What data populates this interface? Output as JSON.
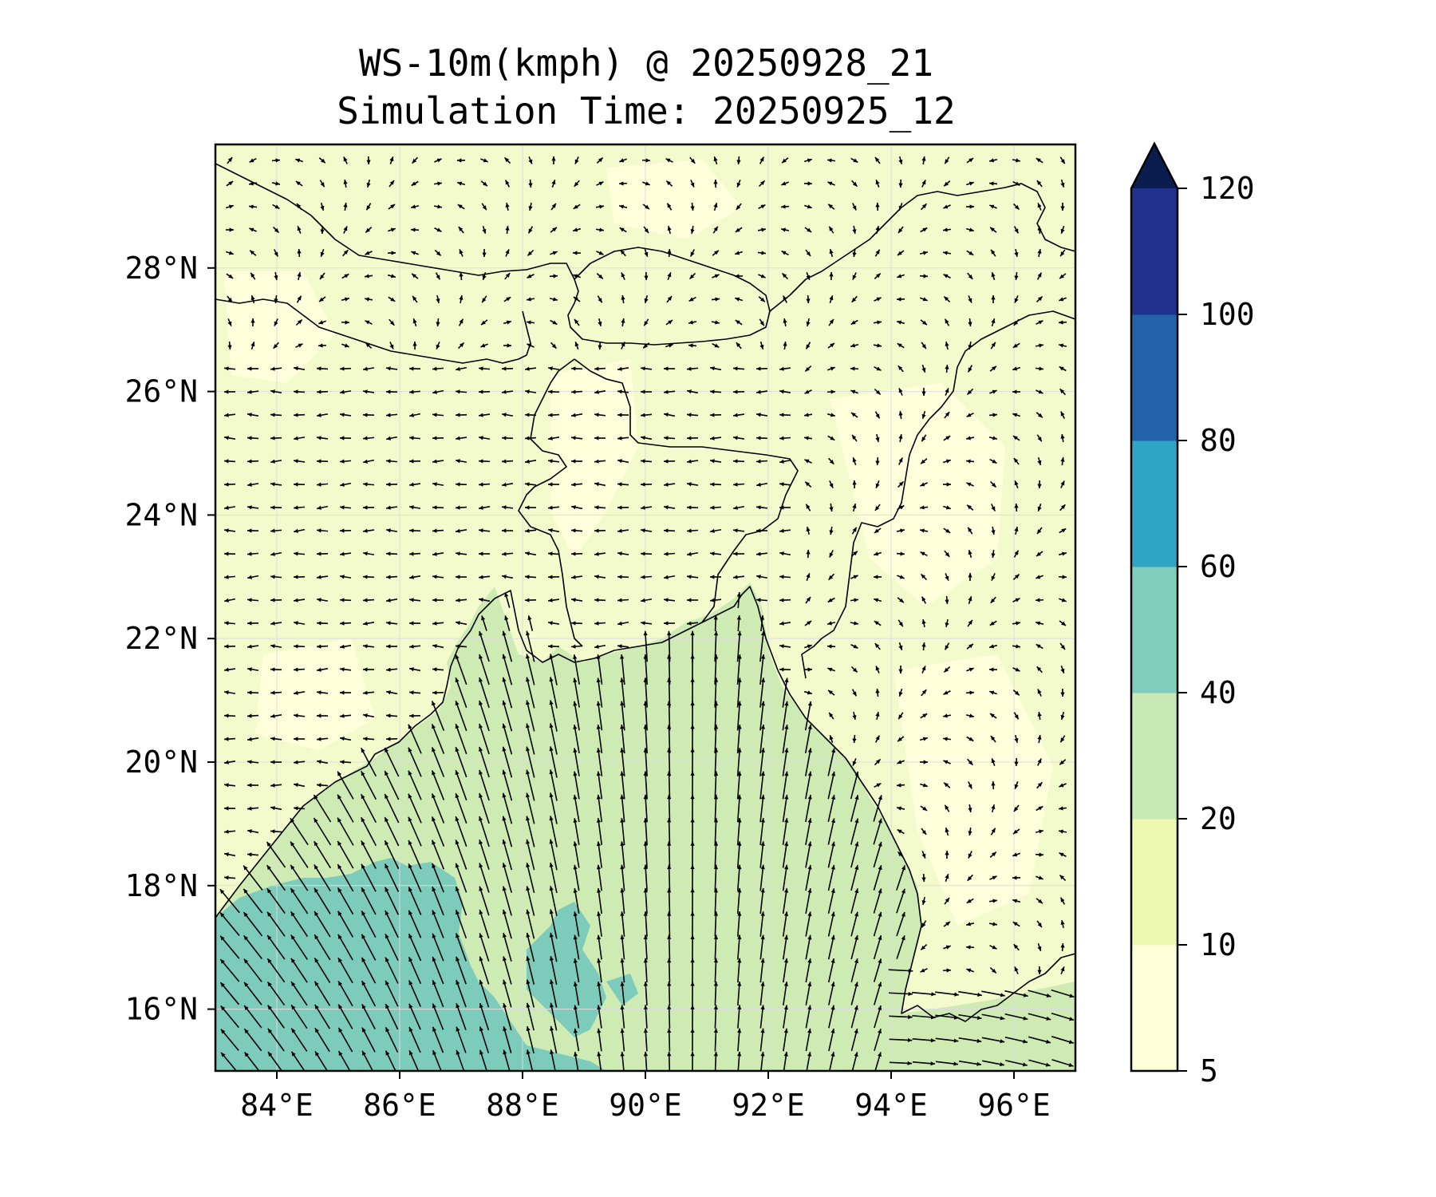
{
  "title": {
    "line1": "WS-10m(kmph) @ 20250928_21",
    "line2": "Simulation Time: 20250925_12"
  },
  "map": {
    "region": "Bay of Bengal",
    "lon_range": [
      83,
      97
    ],
    "lat_range": [
      15,
      30
    ],
    "lon_ticks": [
      {
        "value": 84,
        "label": "84°E"
      },
      {
        "value": 86,
        "label": "86°E"
      },
      {
        "value": 88,
        "label": "88°E"
      },
      {
        "value": 90,
        "label": "90°E"
      },
      {
        "value": 92,
        "label": "92°E"
      },
      {
        "value": 94,
        "label": "94°E"
      },
      {
        "value": 96,
        "label": "96°E"
      }
    ],
    "lat_ticks": [
      {
        "value": 16,
        "label": "16°N"
      },
      {
        "value": 18,
        "label": "18°N"
      },
      {
        "value": 20,
        "label": "20°N"
      },
      {
        "value": 22,
        "label": "22°N"
      },
      {
        "value": 24,
        "label": "24°N"
      },
      {
        "value": 26,
        "label": "26°N"
      },
      {
        "value": 28,
        "label": "28°N"
      }
    ],
    "gridlines": true,
    "wind_vectors": true,
    "colorbar": {
      "levels": [
        5,
        10,
        20,
        40,
        60,
        80,
        100,
        120
      ],
      "labels": [
        "5",
        "10",
        "20",
        "40",
        "60",
        "80",
        "100",
        "120"
      ],
      "colors": [
        "#ffffd9",
        "#edf8b1",
        "#c7e9b4",
        "#7fcdbb",
        "#2ea5c4",
        "#2262a8",
        "#21318d"
      ],
      "extend_color": "#0b1d4f",
      "extend": "max"
    },
    "palette": {
      "land": "#f3fbcc",
      "land_light": "#ffffdc",
      "sea_mid": "#cdebb2",
      "sea_strong": "#7ccbbb",
      "border": "#000000"
    }
  }
}
